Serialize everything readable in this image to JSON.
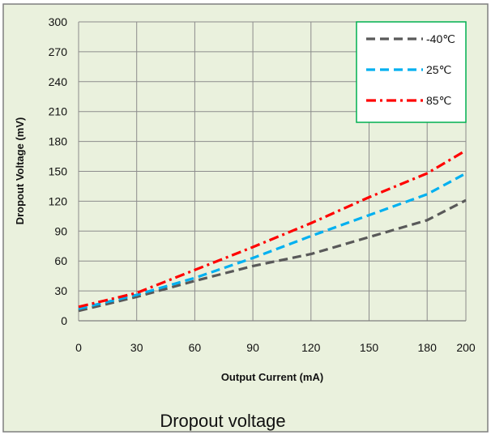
{
  "chart_data": {
    "type": "line",
    "title": "",
    "caption": "Dropout voltage",
    "xlabel": "Output Current (mA)",
    "ylabel": "Dropout Voltage (mV)",
    "xlim": [
      0,
      200
    ],
    "ylim": [
      0,
      300
    ],
    "xticks": [
      0,
      30,
      60,
      90,
      120,
      150,
      180,
      200
    ],
    "yticks": [
      0,
      30,
      60,
      90,
      120,
      150,
      180,
      210,
      240,
      270,
      300
    ],
    "grid": true,
    "legend_position": "top-right",
    "background_color": "#eaf1dd",
    "border_color": "#7f7f7f",
    "legend_border_color": "#00b050",
    "series": [
      {
        "name": "-40℃",
        "color": "#595959",
        "dash": "dash",
        "x": [
          0,
          30,
          60,
          90,
          120,
          150,
          180,
          200
        ],
        "y": [
          10,
          24,
          40,
          55,
          67,
          84,
          101,
          121
        ]
      },
      {
        "name": "25℃",
        "color": "#00b0f0",
        "dash": "dash",
        "x": [
          0,
          30,
          60,
          90,
          120,
          150,
          180,
          200
        ],
        "y": [
          12,
          26,
          43,
          63,
          85,
          106,
          127,
          148
        ]
      },
      {
        "name": "85℃",
        "color": "#ff0000",
        "dash": "dashdot",
        "x": [
          0,
          30,
          60,
          90,
          120,
          150,
          180,
          200
        ],
        "y": [
          14,
          28,
          51,
          74,
          98,
          124,
          148,
          171
        ]
      }
    ]
  }
}
